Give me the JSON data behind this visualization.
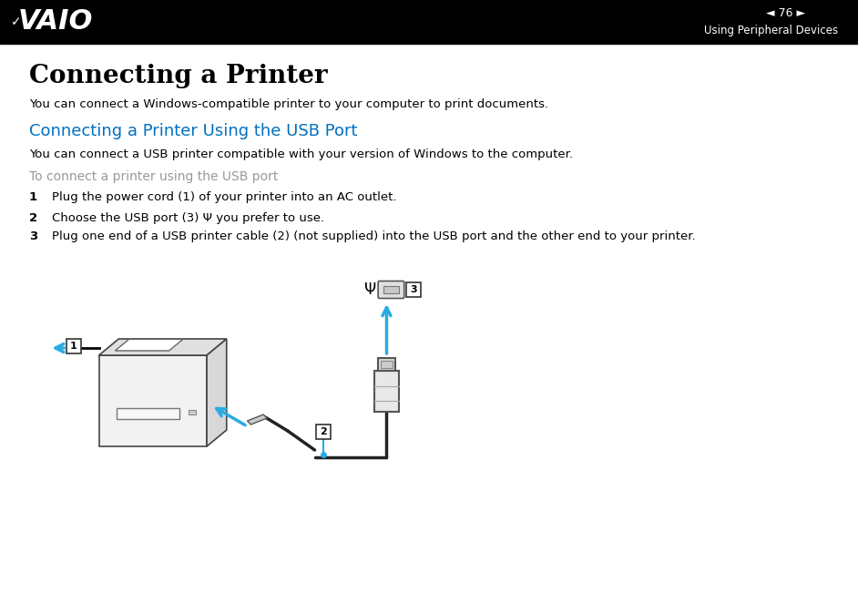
{
  "bg_color": "#ffffff",
  "header_bg": "#000000",
  "header_text_color": "#ffffff",
  "page_number": "76",
  "header_right_text": "Using Peripheral Devices",
  "title": "Connecting a Printer",
  "subtitle_blue": "Connecting a Printer Using the USB Port",
  "subtitle_blue_color": "#0070c0",
  "body_text_color": "#000000",
  "gray_text_color": "#999999",
  "blue_arrow_color": "#29ABE2",
  "para1": "You can connect a Windows-compatible printer to your computer to print documents.",
  "para2": "You can connect a USB printer compatible with your version of Windows to the computer.",
  "gray_subtitle": "To connect a printer using the USB port",
  "step1_num": "1",
  "step1_text": "Plug the power cord (1) of your printer into an AC outlet.",
  "step2_num": "2",
  "step2_text": "Choose the USB port (3) Ψ you prefer to use.",
  "step3_num": "3",
  "step3_text": "Plug one end of a USB printer cable (2) (not supplied) into the USB port and the other end to your printer."
}
